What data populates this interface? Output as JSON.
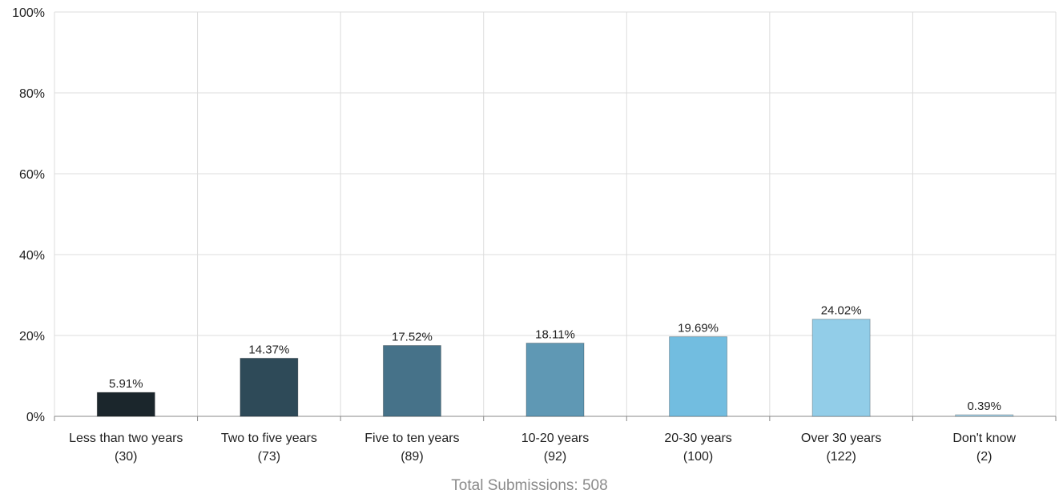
{
  "chart_data": {
    "type": "bar",
    "categories": [
      {
        "label": "Less than two years",
        "count": "(30)"
      },
      {
        "label": "Two to five years",
        "count": "(73)"
      },
      {
        "label": "Five to ten years",
        "count": "(89)"
      },
      {
        "label": "10-20 years",
        "count": "(92)"
      },
      {
        "label": "20-30 years",
        "count": "(100)"
      },
      {
        "label": "Over 30 years",
        "count": "(122)"
      },
      {
        "label": "Don't know",
        "count": "(2)"
      }
    ],
    "values": [
      5.91,
      14.37,
      17.52,
      18.11,
      19.69,
      24.02,
      0.39
    ],
    "value_labels": [
      "5.91%",
      "14.37%",
      "17.52%",
      "18.11%",
      "19.69%",
      "24.02%",
      "0.39%"
    ],
    "colors": [
      "#1b262c",
      "#2e4a58",
      "#467289",
      "#5f98b4",
      "#72bde0",
      "#92cde8",
      "#a9d6ec"
    ],
    "ylim": [
      0,
      100
    ],
    "yticks": [
      0,
      20,
      40,
      60,
      80,
      100
    ],
    "ytick_labels": [
      "0%",
      "20%",
      "40%",
      "60%",
      "80%",
      "100%"
    ],
    "grid": true,
    "footer": "Total Submissions: 508"
  }
}
